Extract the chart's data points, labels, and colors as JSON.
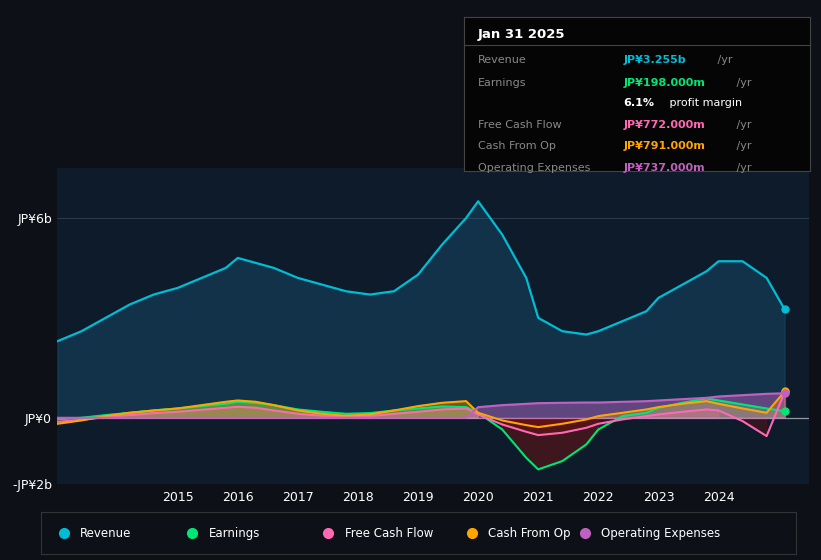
{
  "bg_color": "#0d1117",
  "plot_bg_color": "#0d1b2a",
  "title": "Jan 31 2025",
  "ylabel_top": "JP¥6b",
  "ylabel_zero": "JP¥0",
  "ylabel_bottom": "-JP¥2b",
  "ylim": [
    -2.0,
    7.5
  ],
  "xlim": [
    2013.0,
    2025.5
  ],
  "xticks": [
    2015,
    2016,
    2017,
    2018,
    2019,
    2020,
    2021,
    2022,
    2023,
    2024
  ],
  "info_rows": [
    {
      "label": "Revenue",
      "value": "JP¥3.255b",
      "suffix": " /yr",
      "color": "#00bcd4",
      "bold_pct": ""
    },
    {
      "label": "Earnings",
      "value": "JP¥198.000m",
      "suffix": " /yr",
      "color": "#00e676",
      "bold_pct": ""
    },
    {
      "label": "",
      "value": "6.1%",
      "suffix": " profit margin",
      "color": "#ffffff",
      "bold_pct": "bold"
    },
    {
      "label": "Free Cash Flow",
      "value": "JP¥772.000m",
      "suffix": " /yr",
      "color": "#ff69b4",
      "bold_pct": ""
    },
    {
      "label": "Cash From Op",
      "value": "JP¥791.000m",
      "suffix": " /yr",
      "color": "#ffa500",
      "bold_pct": ""
    },
    {
      "label": "Operating Expenses",
      "value": "JP¥737.000m",
      "suffix": " /yr",
      "color": "#c060c0",
      "bold_pct": ""
    }
  ],
  "legend": [
    {
      "label": "Revenue",
      "color": "#00bcd4"
    },
    {
      "label": "Earnings",
      "color": "#00e676"
    },
    {
      "label": "Free Cash Flow",
      "color": "#ff69b4"
    },
    {
      "label": "Cash From Op",
      "color": "#ffa500"
    },
    {
      "label": "Operating Expenses",
      "color": "#c060c0"
    }
  ],
  "revenue": {
    "color": "#00bcd4",
    "fill_color": "#1a5a7a",
    "x": [
      2013.0,
      2013.4,
      2013.8,
      2014.2,
      2014.6,
      2015.0,
      2015.4,
      2015.8,
      2016.0,
      2016.3,
      2016.6,
      2017.0,
      2017.4,
      2017.8,
      2018.2,
      2018.6,
      2019.0,
      2019.4,
      2019.8,
      2020.0,
      2020.4,
      2020.8,
      2021.0,
      2021.4,
      2021.8,
      2022.0,
      2022.4,
      2022.8,
      2023.0,
      2023.4,
      2023.8,
      2024.0,
      2024.4,
      2024.8,
      2025.1
    ],
    "y": [
      2.3,
      2.6,
      3.0,
      3.4,
      3.7,
      3.9,
      4.2,
      4.5,
      4.8,
      4.65,
      4.5,
      4.2,
      4.0,
      3.8,
      3.7,
      3.8,
      4.3,
      5.2,
      6.0,
      6.5,
      5.5,
      4.2,
      3.0,
      2.6,
      2.5,
      2.6,
      2.9,
      3.2,
      3.6,
      4.0,
      4.4,
      4.7,
      4.7,
      4.2,
      3.255
    ]
  },
  "earnings": {
    "color": "#00e676",
    "x": [
      2013.0,
      2013.4,
      2013.8,
      2014.2,
      2014.6,
      2015.0,
      2015.4,
      2015.8,
      2016.0,
      2016.3,
      2016.6,
      2017.0,
      2017.4,
      2017.8,
      2018.2,
      2018.6,
      2019.0,
      2019.4,
      2019.8,
      2020.0,
      2020.4,
      2020.8,
      2021.0,
      2021.4,
      2021.8,
      2022.0,
      2022.4,
      2022.8,
      2023.0,
      2023.4,
      2023.8,
      2024.0,
      2024.4,
      2024.8,
      2025.1
    ],
    "y": [
      -0.05,
      0.0,
      0.08,
      0.15,
      0.22,
      0.28,
      0.35,
      0.42,
      0.48,
      0.45,
      0.38,
      0.25,
      0.18,
      0.12,
      0.14,
      0.22,
      0.28,
      0.34,
      0.32,
      0.15,
      -0.35,
      -1.2,
      -1.55,
      -1.3,
      -0.8,
      -0.35,
      0.05,
      0.15,
      0.3,
      0.45,
      0.58,
      0.52,
      0.4,
      0.28,
      0.198
    ]
  },
  "free_cash_flow": {
    "color": "#ff69b4",
    "x": [
      2013.0,
      2013.4,
      2013.8,
      2014.2,
      2014.6,
      2015.0,
      2015.4,
      2015.8,
      2016.0,
      2016.3,
      2016.6,
      2017.0,
      2017.4,
      2017.8,
      2018.2,
      2018.6,
      2019.0,
      2019.4,
      2019.8,
      2020.0,
      2020.4,
      2020.8,
      2021.0,
      2021.4,
      2021.8,
      2022.0,
      2022.4,
      2022.8,
      2023.0,
      2023.4,
      2023.8,
      2024.0,
      2024.4,
      2024.8,
      2025.1
    ],
    "y": [
      -0.12,
      -0.06,
      0.02,
      0.08,
      0.14,
      0.18,
      0.24,
      0.3,
      0.33,
      0.3,
      0.22,
      0.12,
      0.06,
      0.03,
      0.05,
      0.12,
      0.18,
      0.25,
      0.28,
      0.1,
      -0.2,
      -0.42,
      -0.52,
      -0.45,
      -0.3,
      -0.18,
      -0.05,
      0.05,
      0.1,
      0.18,
      0.25,
      0.22,
      -0.1,
      -0.55,
      0.772
    ]
  },
  "cash_from_op": {
    "color": "#ffa500",
    "x": [
      2013.0,
      2013.4,
      2013.8,
      2014.2,
      2014.6,
      2015.0,
      2015.4,
      2015.8,
      2016.0,
      2016.3,
      2016.6,
      2017.0,
      2017.4,
      2017.8,
      2018.2,
      2018.6,
      2019.0,
      2019.4,
      2019.8,
      2020.0,
      2020.4,
      2020.8,
      2021.0,
      2021.4,
      2021.8,
      2022.0,
      2022.4,
      2022.8,
      2023.0,
      2023.4,
      2023.8,
      2024.0,
      2024.4,
      2024.8,
      2025.1
    ],
    "y": [
      -0.18,
      -0.08,
      0.05,
      0.15,
      0.22,
      0.28,
      0.38,
      0.48,
      0.52,
      0.48,
      0.38,
      0.22,
      0.12,
      0.06,
      0.1,
      0.22,
      0.35,
      0.45,
      0.5,
      0.15,
      -0.08,
      -0.22,
      -0.28,
      -0.18,
      -0.05,
      0.05,
      0.15,
      0.25,
      0.32,
      0.42,
      0.5,
      0.42,
      0.28,
      0.15,
      0.791
    ]
  },
  "op_expenses": {
    "color": "#c060c0",
    "x": [
      2013.0,
      2013.4,
      2013.8,
      2014.2,
      2014.6,
      2015.0,
      2015.4,
      2015.8,
      2016.0,
      2016.3,
      2016.6,
      2017.0,
      2017.4,
      2017.8,
      2018.2,
      2018.6,
      2019.0,
      2019.4,
      2019.8,
      2020.0,
      2020.4,
      2020.8,
      2021.0,
      2021.4,
      2021.8,
      2022.0,
      2022.4,
      2022.8,
      2023.0,
      2023.4,
      2023.8,
      2024.0,
      2024.4,
      2024.8,
      2025.1
    ],
    "y": [
      0.0,
      0.0,
      0.0,
      0.0,
      0.0,
      0.0,
      0.0,
      0.0,
      0.0,
      0.0,
      0.0,
      0.0,
      0.0,
      0.0,
      0.0,
      0.0,
      0.0,
      0.0,
      0.0,
      0.32,
      0.38,
      0.42,
      0.44,
      0.45,
      0.46,
      0.46,
      0.48,
      0.5,
      0.52,
      0.56,
      0.6,
      0.64,
      0.68,
      0.72,
      0.737
    ]
  }
}
